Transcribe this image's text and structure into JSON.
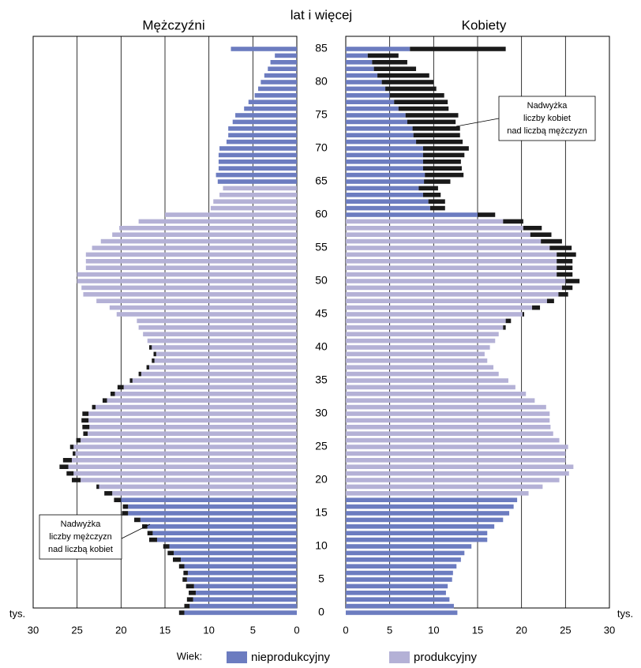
{
  "chart_data": {
    "type": "pyramid",
    "left_title": "Mężczyźni",
    "right_title": "Kobiety",
    "age_header": "lat i więcej",
    "unit": "tys.",
    "legend_title": "Wiek:",
    "xlim": [
      0,
      30
    ],
    "xticks": [
      0,
      5,
      10,
      15,
      20,
      25,
      30
    ],
    "grid": true,
    "categories": [
      0,
      null,
      null,
      null,
      null,
      5,
      null,
      null,
      null,
      null,
      10,
      null,
      null,
      null,
      null,
      15,
      null,
      null,
      null,
      null,
      20,
      null,
      null,
      null,
      null,
      25,
      null,
      null,
      null,
      null,
      30,
      null,
      null,
      null,
      null,
      35,
      null,
      null,
      null,
      null,
      40,
      null,
      null,
      null,
      null,
      45,
      null,
      null,
      null,
      null,
      50,
      null,
      null,
      null,
      null,
      55,
      null,
      null,
      null,
      null,
      60,
      null,
      null,
      null,
      null,
      65,
      null,
      null,
      null,
      null,
      70,
      null,
      null,
      null,
      null,
      75,
      null,
      null,
      null,
      null,
      80,
      null,
      null,
      null,
      null,
      85
    ],
    "series": [
      {
        "name": "nieprodukcyjny",
        "color": "#6c7cc0",
        "side": "left",
        "values": [
          12.8,
          12.2,
          11.8,
          11.5,
          11.7,
          12.5,
          12.4,
          12.8,
          13.2,
          14.0,
          14.5,
          15.9,
          16.4,
          17.0,
          17.8,
          19.2,
          19.2,
          20.0,
          null,
          null,
          null,
          null,
          null,
          null,
          null,
          null,
          null,
          null,
          null,
          null,
          null,
          null,
          null,
          null,
          null,
          null,
          null,
          null,
          null,
          null,
          null,
          null,
          null,
          null,
          null,
          null,
          null,
          null,
          null,
          null,
          null,
          null,
          null,
          null,
          null,
          null,
          null,
          null,
          null,
          null,
          null,
          null,
          null,
          null,
          null,
          9.0,
          9.2,
          8.9,
          8.9,
          8.9,
          8.8,
          8.0,
          7.8,
          7.8,
          7.3,
          7.0,
          6.0,
          5.5,
          4.8,
          4.4,
          4.1,
          3.7,
          3.3,
          3.0,
          2.5,
          7.5
        ]
      },
      {
        "name": "produkcyjny",
        "color": "#b4b1d6",
        "side": "left",
        "values": [
          null,
          null,
          null,
          null,
          null,
          null,
          null,
          null,
          null,
          null,
          null,
          null,
          null,
          null,
          null,
          null,
          null,
          null,
          21.0,
          22.5,
          24.6,
          25.4,
          26.0,
          25.6,
          25.2,
          25.4,
          24.6,
          23.8,
          23.6,
          23.7,
          23.7,
          22.9,
          21.6,
          20.7,
          19.7,
          18.7,
          17.7,
          16.8,
          16.2,
          16.0,
          16.5,
          17.0,
          17.5,
          18.0,
          18.2,
          20.5,
          21.3,
          22.8,
          24.3,
          24.5,
          25.0,
          25.0,
          24.0,
          24.0,
          24.0,
          23.3,
          22.3,
          21.0,
          20.2,
          18.0,
          15.0,
          9.8,
          9.5,
          8.8,
          8.4,
          null,
          null,
          null,
          null,
          null,
          null,
          null,
          null,
          null,
          null,
          null,
          null,
          null,
          null,
          null,
          null,
          null,
          null,
          null,
          null,
          null
        ]
      },
      {
        "color": "#1a1a1a",
        "side": "left",
        "stack": true,
        "values": [
          0.6,
          0.6,
          0.7,
          0.8,
          0.9,
          0.5,
          0.5,
          0.6,
          0.9,
          0.7,
          0.7,
          0.9,
          0.6,
          0.6,
          0.7,
          0.7,
          0.6,
          0.8,
          0.9,
          0.3,
          1.0,
          0.8,
          1.0,
          1.0,
          0.3,
          0.4,
          0.5,
          0.5,
          0.8,
          0.8,
          0.7,
          0.4,
          0.5,
          0.5,
          0.7,
          0.3,
          0.3,
          0.3,
          0.3,
          0.3,
          0.3,
          null,
          null,
          null,
          null,
          null,
          null,
          null,
          null,
          null,
          null,
          null,
          null,
          null,
          null,
          null,
          null,
          null,
          null,
          null,
          null,
          null,
          null,
          null,
          null,
          null,
          null,
          null,
          null,
          null,
          null,
          null,
          null,
          null,
          null,
          null,
          null,
          null,
          null,
          null,
          null,
          null,
          null,
          null,
          null,
          null
        ]
      },
      {
        "name": "nieprodukcyjny",
        "color": "#6c7cc0",
        "side": "right",
        "values": [
          12.7,
          12.3,
          11.8,
          11.4,
          11.6,
          12.1,
          12.2,
          12.6,
          13.1,
          13.5,
          14.3,
          16.1,
          16.1,
          16.9,
          17.9,
          18.6,
          19.1,
          19.5,
          null,
          null,
          null,
          null,
          null,
          null,
          null,
          null,
          null,
          null,
          null,
          null,
          null,
          null,
          null,
          null,
          null,
          null,
          null,
          null,
          null,
          null,
          null,
          null,
          null,
          null,
          null,
          null,
          null,
          null,
          null,
          null,
          null,
          null,
          null,
          null,
          null,
          null,
          null,
          null,
          null,
          null,
          15.0,
          9.6,
          9.4,
          8.8,
          8.3,
          8.9,
          9.0,
          8.8,
          8.8,
          8.8,
          8.8,
          8.0,
          7.7,
          7.6,
          7.0,
          6.8,
          6.0,
          5.5,
          5.0,
          4.5,
          4.1,
          3.6,
          3.2,
          3.0,
          2.5,
          7.3
        ]
      },
      {
        "name": "produkcyjny",
        "color": "#b4b1d6",
        "side": "right",
        "values": [
          null,
          null,
          null,
          null,
          null,
          null,
          null,
          null,
          null,
          null,
          null,
          null,
          null,
          null,
          null,
          null,
          null,
          null,
          20.8,
          22.4,
          24.3,
          25.4,
          25.9,
          25.0,
          25.0,
          25.3,
          24.3,
          23.6,
          23.3,
          23.2,
          23.2,
          22.8,
          21.5,
          20.5,
          19.3,
          18.5,
          17.4,
          16.8,
          16.1,
          15.8,
          16.4,
          17.0,
          17.4,
          17.9,
          18.2,
          20.1,
          21.2,
          22.9,
          24.2,
          24.6,
          25.0,
          24.0,
          24.0,
          24.0,
          24.0,
          23.2,
          22.2,
          21.0,
          20.2,
          17.9,
          null,
          null,
          null,
          null,
          null,
          null,
          null,
          null,
          null,
          null,
          null,
          null,
          null,
          null,
          null,
          null,
          null,
          null,
          null,
          null,
          null,
          null,
          null,
          null,
          null,
          null
        ]
      },
      {
        "color": "#1a1a1a",
        "side": "right",
        "stack": true,
        "values": [
          null,
          null,
          null,
          null,
          null,
          null,
          null,
          null,
          null,
          null,
          null,
          null,
          null,
          null,
          null,
          null,
          null,
          null,
          null,
          null,
          null,
          null,
          null,
          null,
          null,
          null,
          null,
          null,
          null,
          null,
          null,
          null,
          null,
          null,
          null,
          null,
          null,
          null,
          null,
          null,
          null,
          null,
          null,
          0.3,
          0.6,
          0.2,
          0.9,
          0.8,
          1.1,
          1.2,
          1.6,
          1.8,
          1.8,
          1.8,
          2.2,
          2.5,
          2.4,
          2.4,
          2.1,
          2.3,
          2.0,
          1.7,
          1.9,
          2.0,
          2.2,
          3.0,
          4.4,
          4.4,
          4.3,
          4.7,
          5.2,
          5.3,
          5.3,
          5.4,
          5.5,
          6.0,
          5.7,
          6.1,
          6.2,
          5.8,
          5.9,
          5.9,
          4.8,
          4.0,
          3.5,
          10.9
        ]
      }
    ],
    "annotations": [
      {
        "side": "right",
        "lines": [
          "Nadwyżka",
          "liczby kobiet",
          "nad liczbą mężczyzn"
        ]
      },
      {
        "side": "left",
        "lines": [
          "Nadwyżka",
          "liczby mężczyzn",
          "nad liczbą kobiet"
        ]
      }
    ]
  }
}
